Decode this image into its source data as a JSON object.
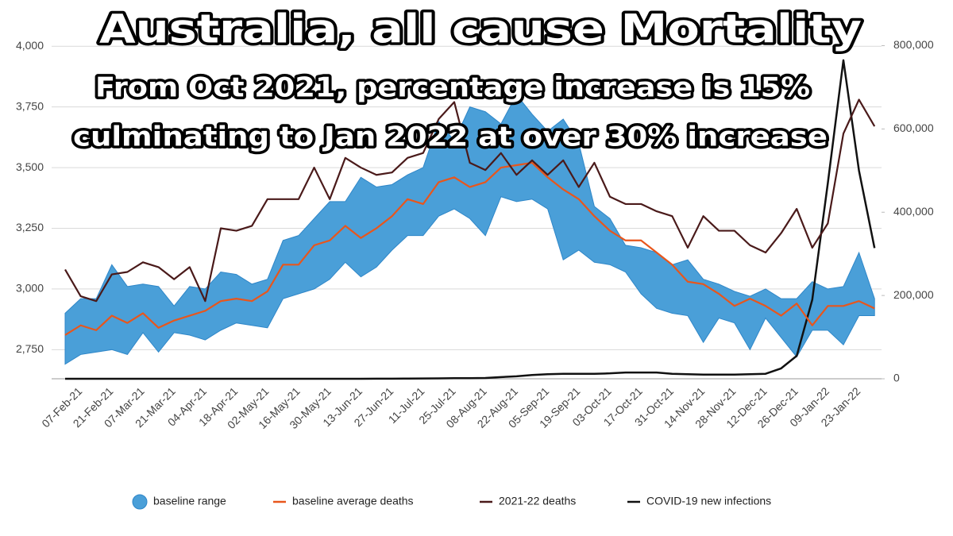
{
  "chart_data": {
    "type": "line",
    "title": "Australia, all cause Mortality",
    "subtitle": [
      "From Oct 2021, percentage increase is 15%",
      "culminating to Jan 2022 at over 30% increase"
    ],
    "categories": [
      null,
      "07-Feb-21",
      null,
      "21-Feb-21",
      null,
      "07-Mar-21",
      null,
      "21-Mar-21",
      null,
      "04-Apr-21",
      null,
      "18-Apr-21",
      null,
      "02-May-21",
      null,
      "16-May-21",
      null,
      "30-May-21",
      null,
      "13-Jun-21",
      null,
      "27-Jun-21",
      null,
      "11-Jul-21",
      null,
      "25-Jul-21",
      null,
      "08-Aug-21",
      null,
      "22-Aug-21",
      null,
      "05-Sep-21",
      null,
      "19-Sep-21",
      null,
      "03-Oct-21",
      null,
      "17-Oct-21",
      null,
      "31-Oct-21",
      null,
      "14-Nov-21",
      null,
      "28-Nov-21",
      null,
      "12-Dec-21",
      null,
      "26-Dec-21",
      null,
      "09-Jan-22",
      null,
      "23-Jan-22",
      null
    ],
    "series": [
      {
        "name": "baseline range",
        "kind": "band",
        "color": "#4a9fd8",
        "high": [
          2900,
          2960,
          2960,
          3100,
          3010,
          3020,
          3010,
          2930,
          3010,
          3000,
          3070,
          3060,
          3020,
          3040,
          3200,
          3220,
          3290,
          3360,
          3360,
          3460,
          3420,
          3430,
          3470,
          3500,
          3690,
          3610,
          3750,
          3730,
          3680,
          3800,
          3720,
          3650,
          3700,
          3600,
          3340,
          3290,
          3180,
          3170,
          3150,
          3100,
          3120,
          3040,
          3020,
          2990,
          2970,
          3000,
          2960,
          2960,
          3030,
          3000,
          3010,
          3150,
          2960
        ],
        "low": [
          2690,
          2730,
          2740,
          2750,
          2730,
          2820,
          2740,
          2820,
          2810,
          2790,
          2830,
          2860,
          2850,
          2840,
          2960,
          2980,
          3000,
          3040,
          3110,
          3050,
          3090,
          3160,
          3220,
          3220,
          3300,
          3330,
          3290,
          3220,
          3380,
          3360,
          3370,
          3330,
          3120,
          3160,
          3110,
          3100,
          3070,
          2980,
          2920,
          2900,
          2890,
          2780,
          2880,
          2860,
          2750,
          2880,
          2800,
          2720,
          2830,
          2830,
          2770,
          2890,
          2890
        ]
      },
      {
        "name": "baseline average deaths",
        "kind": "line",
        "color": "#e8561c",
        "values": [
          2810,
          2850,
          2830,
          2890,
          2860,
          2900,
          2840,
          2870,
          2890,
          2910,
          2950,
          2960,
          2950,
          2990,
          3100,
          3100,
          3180,
          3200,
          3260,
          3210,
          3250,
          3300,
          3370,
          3350,
          3440,
          3460,
          3420,
          3440,
          3500,
          3510,
          3520,
          3460,
          3410,
          3370,
          3300,
          3240,
          3200,
          3200,
          3150,
          3100,
          3030,
          3020,
          2980,
          2930,
          2960,
          2930,
          2890,
          2940,
          2850,
          2930,
          2930,
          2950,
          2920
        ]
      },
      {
        "name": "2021-22 deaths",
        "kind": "line",
        "color": "#4a1a1a",
        "values": [
          3080,
          2970,
          2950,
          3060,
          3070,
          3110,
          3090,
          3040,
          3090,
          2950,
          3250,
          3240,
          3260,
          3370,
          3370,
          3370,
          3500,
          3370,
          3540,
          3500,
          3470,
          3480,
          3540,
          3560,
          3700,
          3770,
          3520,
          3490,
          3560,
          3470,
          3530,
          3470,
          3530,
          3420,
          3520,
          3380,
          3350,
          3350,
          3320,
          3300,
          3170,
          3300,
          3240,
          3240,
          3180,
          3150,
          3230,
          3330,
          3170,
          3270,
          3640,
          3780,
          3670
        ]
      },
      {
        "name": "COVID-19 new infections",
        "kind": "line",
        "color": "#111111",
        "axis": "y2",
        "values": [
          0,
          0,
          0,
          0,
          0,
          0,
          0,
          0,
          0,
          0,
          0,
          0,
          0,
          0,
          0,
          0,
          0,
          0,
          0,
          0,
          200,
          300,
          500,
          800,
          1000,
          1500,
          1500,
          2000,
          4000,
          6000,
          9000,
          11000,
          12000,
          12000,
          12000,
          13000,
          15000,
          15000,
          15000,
          12000,
          11000,
          10000,
          10000,
          10000,
          11000,
          12000,
          25000,
          55000,
          190000,
          470000,
          765000,
          500000,
          314000
        ]
      }
    ],
    "ylim": [
      2630,
      4040
    ],
    "yticks": [
      {
        "value": 2750,
        "label": "2,750"
      },
      {
        "value": 3000,
        "label": "3,000"
      },
      {
        "value": 3250,
        "label": "3,250"
      },
      {
        "value": 3500,
        "label": "3,500"
      },
      {
        "value": 3750,
        "label": "3,750"
      },
      {
        "value": 4000,
        "label": "4,000"
      }
    ],
    "y2lim": [
      0,
      822000
    ],
    "y2ticks": [
      0,
      {
        "value": 200000,
        "label": "200,000"
      },
      {
        "value": 400000,
        "label": "400,000"
      },
      {
        "value": 600000,
        "label": "600,000"
      },
      {
        "value": 800000,
        "label": "800,000"
      }
    ],
    "grid": true
  }
}
